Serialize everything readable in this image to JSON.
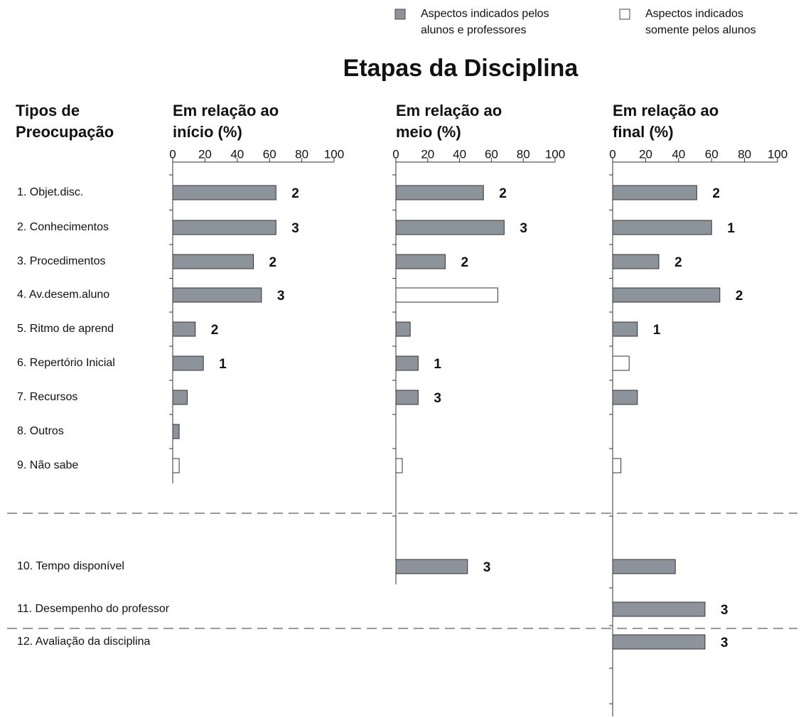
{
  "title": "Etapas da Disciplina",
  "legend": [
    {
      "label": [
        "Aspectos indicados pelos",
        "alunos e professores"
      ],
      "color": "#8c939b"
    },
    {
      "label": [
        "Aspectos indicados",
        "somente pelos alunos"
      ],
      "color": "#ffffff"
    }
  ],
  "row_header": [
    "Tipos de",
    "Preocupação"
  ],
  "categories": [
    "1. Objet.disc.",
    "2. Conhecimentos",
    "3. Procedimentos",
    "4. Av.desem.aluno",
    "5. Ritmo de aprend",
    "6. Repertório Inicial",
    "7. Recursos",
    "8. Outros",
    "9. Não sabe",
    "10. Tempo disponível",
    "11. Desempenho do professor",
    "12. Avaliação da disciplina"
  ],
  "chart_data": [
    {
      "type": "bar",
      "title": [
        "Em relação ao",
        "início (%)"
      ],
      "xlim": [
        0,
        100
      ],
      "xticks": [
        0,
        20,
        40,
        60,
        80,
        100
      ],
      "values": [
        64,
        64,
        50,
        55,
        14,
        19,
        9,
        4,
        4
      ],
      "colors": [
        "#8c939b",
        "#8c939b",
        "#8c939b",
        "#8c939b",
        "#8c939b",
        "#8c939b",
        "#8c939b",
        "#8c939b",
        "#ffffff"
      ],
      "counts": [
        2,
        3,
        2,
        3,
        2,
        1,
        null,
        null,
        null
      ]
    },
    {
      "type": "bar",
      "title": [
        "Em relação ao",
        "meio (%)"
      ],
      "xlim": [
        0,
        100
      ],
      "xticks": [
        0,
        20,
        40,
        60,
        80,
        100
      ],
      "values": [
        55,
        68,
        31,
        64,
        9,
        14,
        14,
        null,
        4,
        45
      ],
      "colors": [
        "#8c939b",
        "#8c939b",
        "#8c939b",
        "#ffffff",
        "#8c939b",
        "#8c939b",
        "#8c939b",
        null,
        "#ffffff",
        "#8c939b"
      ],
      "counts": [
        2,
        3,
        2,
        null,
        null,
        1,
        3,
        null,
        null,
        3
      ]
    },
    {
      "type": "bar",
      "title": [
        "Em relação ao",
        "final (%)"
      ],
      "xlim": [
        0,
        100
      ],
      "xticks": [
        0,
        20,
        40,
        60,
        80,
        100
      ],
      "values": [
        51,
        60,
        28,
        65,
        15,
        10,
        15,
        null,
        5,
        38,
        56,
        56
      ],
      "colors": [
        "#8c939b",
        "#8c939b",
        "#8c939b",
        "#8c939b",
        "#8c939b",
        "#ffffff",
        "#8c939b",
        null,
        "#ffffff",
        "#8c939b",
        "#8c939b",
        "#8c939b"
      ],
      "counts": [
        2,
        1,
        2,
        2,
        1,
        null,
        null,
        null,
        null,
        null,
        3,
        3
      ]
    }
  ]
}
